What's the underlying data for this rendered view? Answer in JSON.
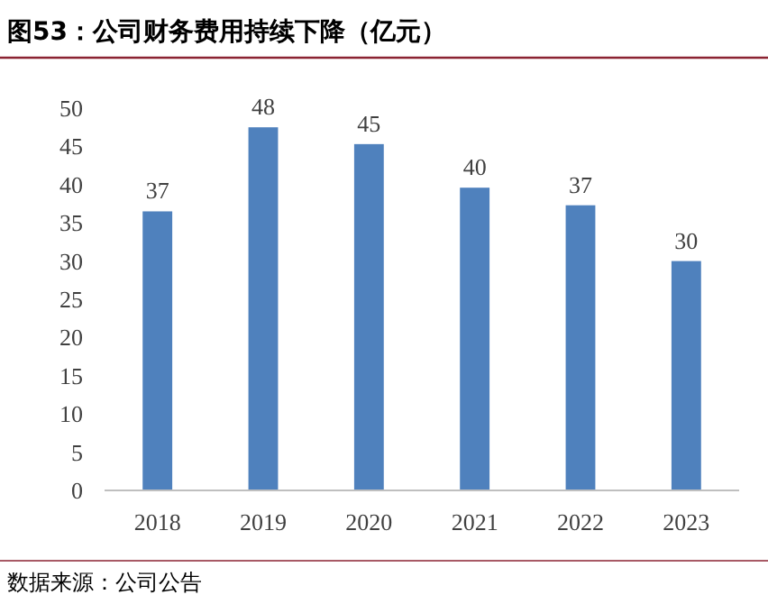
{
  "chart_data": {
    "type": "bar",
    "title": "图53：公司财务费用持续下降（亿元）",
    "categories": [
      "2018",
      "2019",
      "2020",
      "2021",
      "2022",
      "2023"
    ],
    "values": [
      36.5,
      47.5,
      45.3,
      39.6,
      37.3,
      30.0
    ],
    "value_labels": [
      "37",
      "48",
      "45",
      "40",
      "37",
      "30"
    ],
    "color": "#4f81bd",
    "ylim": [
      0,
      50
    ],
    "yticks": [
      0,
      5,
      10,
      15,
      20,
      25,
      30,
      35,
      40,
      45,
      50
    ],
    "grid": false,
    "annotations": [
      "数据来源：公司公告"
    ]
  }
}
